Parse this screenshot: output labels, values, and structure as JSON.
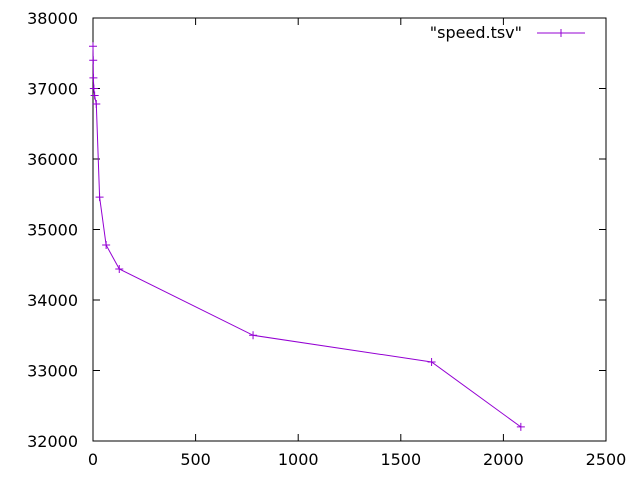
{
  "chart_data": {
    "type": "line",
    "title": "",
    "xlabel": "",
    "ylabel": "",
    "xlim": [
      0,
      2500
    ],
    "ylim": [
      32000,
      38000
    ],
    "x_ticks": [
      0,
      500,
      1000,
      1500,
      2000,
      2500
    ],
    "y_ticks": [
      32000,
      33000,
      34000,
      35000,
      36000,
      37000,
      38000
    ],
    "grid": false,
    "legend_position": "top-right",
    "series": [
      {
        "name": "\"speed.tsv\"",
        "color": "#9400d3",
        "marker": "plus",
        "x": [
          0,
          1,
          2,
          4,
          8,
          16,
          32,
          64,
          128,
          780,
          1650,
          2085
        ],
        "y": [
          37600,
          37400,
          37150,
          37000,
          36900,
          36780,
          35460,
          34780,
          34440,
          33500,
          33120,
          32200
        ]
      }
    ]
  }
}
